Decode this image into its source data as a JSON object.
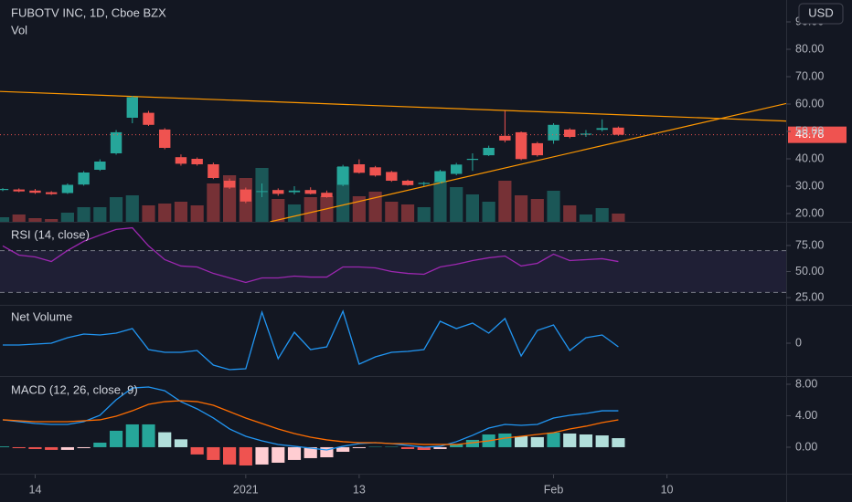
{
  "chart_data": [
    {
      "type": "candlestick",
      "title": "FUBOTV INC, 1D, Cboe BZX",
      "currency": "USD",
      "xlim": [
        -0.17,
        48.36
      ],
      "xticks": [
        {
          "value": 2,
          "label": "14"
        },
        {
          "value": 15,
          "label": "2021"
        },
        {
          "value": 22,
          "label": "13"
        },
        {
          "value": 34,
          "label": "Feb"
        },
        {
          "value": 41,
          "label": "10"
        }
      ],
      "ylim": [
        17.0,
        98.0
      ],
      "yticks": [
        {
          "value": 20,
          "label": "20.00"
        },
        {
          "value": 30,
          "label": "30.00"
        },
        {
          "value": 40,
          "label": "40.00"
        },
        {
          "value": 50,
          "label": "50.00"
        },
        {
          "value": 60,
          "label": "60.00"
        },
        {
          "value": 70,
          "label": "70.00"
        },
        {
          "value": 80,
          "label": "80.00"
        },
        {
          "value": 90,
          "label": "90.00"
        }
      ],
      "up_color": "#26a69a",
      "down_color": "#ef5350",
      "open": [
        28.6,
        28.8,
        28.4,
        27.8,
        27.5,
        30.6,
        36.0,
        42.0,
        55.0,
        56.8,
        50.7,
        40.6,
        40.0,
        38.0,
        32.0,
        28.8,
        28.0,
        28.6,
        27.8,
        28.6,
        27.6,
        30.5,
        38.0,
        36.9,
        35.2,
        32.0,
        30.8,
        31.5,
        34.5,
        39.6,
        41.3,
        48.4,
        49.7,
        45.7,
        46.7,
        50.7,
        48.8,
        50.6,
        51.4
      ],
      "high": [
        29.3,
        29.2,
        29.0,
        28.2,
        31.0,
        35.5,
        39.8,
        50.5,
        63.0,
        57.5,
        51.2,
        41.6,
        40.5,
        38.6,
        32.8,
        29.5,
        31.0,
        29.2,
        30.0,
        29.6,
        28.4,
        37.8,
        39.8,
        37.4,
        35.6,
        32.4,
        31.6,
        36.0,
        38.5,
        42.0,
        44.8,
        57.5,
        50.0,
        46.2,
        53.0,
        51.2,
        50.5,
        54.4,
        51.8
      ],
      "low": [
        28.2,
        27.8,
        27.2,
        26.8,
        27.2,
        30.2,
        35.6,
        41.5,
        53.0,
        52.0,
        43.5,
        37.5,
        37.5,
        32.6,
        29.0,
        23.8,
        26.0,
        26.5,
        27.0,
        27.0,
        25.8,
        30.0,
        34.6,
        33.5,
        31.6,
        30.2,
        30.0,
        31.0,
        34.0,
        35.6,
        41.0,
        46.0,
        39.5,
        40.8,
        45.5,
        47.5,
        48.0,
        50.0,
        48.4
      ],
      "close": [
        29.0,
        28.1,
        27.6,
        27.1,
        30.5,
        35.0,
        39.0,
        49.7,
        62.5,
        52.4,
        44.0,
        38.2,
        38.0,
        33.0,
        29.5,
        24.4,
        28.2,
        27.2,
        28.4,
        27.2,
        26.0,
        37.2,
        34.9,
        33.9,
        32.0,
        30.4,
        31.2,
        35.5,
        37.9,
        40.0,
        44.0,
        46.7,
        39.9,
        41.3,
        52.4,
        48.0,
        49.2,
        51.2,
        48.78
      ],
      "volume": {
        "name": "Vol",
        "values": [
          5,
          8,
          4,
          3,
          10,
          16,
          16,
          27,
          29,
          18,
          20,
          22,
          18,
          42,
          51,
          48,
          59,
          25,
          19,
          27,
          28,
          60,
          28,
          33,
          22,
          19,
          16,
          44,
          38,
          30,
          22,
          45,
          29,
          25,
          34,
          18,
          8,
          15,
          9
        ]
      },
      "trendline_color": "#ff9800",
      "trendlines": [
        {
          "x": [
            -0.17,
            48.36
          ],
          "y": [
            64.6,
            53.8
          ]
        },
        {
          "x": [
            16.5,
            48.36
          ],
          "y": [
            17.0,
            60.2
          ]
        }
      ]
    },
    {
      "type": "line",
      "title": "RSI (14, close)",
      "color": "#9c27b0",
      "ylim": [
        18.9,
        96.0
      ],
      "yticks": [
        {
          "value": 25,
          "label": "25.00"
        },
        {
          "value": 50,
          "label": "50.00"
        },
        {
          "value": 75,
          "label": "75.00"
        }
      ],
      "band": [
        30,
        70
      ],
      "values": [
        74.6,
        65.8,
        64.0,
        59.6,
        70.2,
        79.0,
        85.0,
        90.4,
        92.0,
        74.6,
        61.4,
        55.3,
        54.4,
        48.2,
        43.9,
        39.5,
        43.9,
        43.9,
        45.6,
        44.7,
        44.7,
        54.4,
        54.4,
        53.5,
        50.0,
        48.2,
        47.4,
        54.4,
        57.0,
        60.5,
        63.2,
        64.9,
        55.3,
        57.9,
        66.7,
        60.5,
        61.4,
        62.3,
        59.6
      ]
    },
    {
      "type": "line",
      "title": "Net Volume",
      "color": "#2196f3",
      "ylim": [
        -34,
        39
      ],
      "yticks": [
        0
      ],
      "values": [
        -2,
        -2,
        -1,
        0,
        6,
        10,
        9,
        11,
        16,
        -7,
        -10,
        -10,
        -8,
        -24,
        -29,
        -28,
        34,
        -17,
        12,
        -7,
        -4,
        35,
        -23,
        -15,
        -10,
        -9,
        -7,
        24,
        16,
        22,
        11,
        27,
        -14,
        14,
        20,
        -8,
        6,
        9,
        -4
      ]
    },
    {
      "type": "macd",
      "title": "MACD (12, 26, close, 9)",
      "ylim": [
        -3.25,
        8.81
      ],
      "yticks": [
        {
          "value": 0,
          "label": "0.00"
        },
        {
          "value": 4,
          "label": "4.00"
        },
        {
          "value": 8,
          "label": "8.00"
        }
      ],
      "macd": {
        "color": "#2196f3",
        "values": [
          3.48,
          3.24,
          3.01,
          2.9,
          2.9,
          3.24,
          4.06,
          6.03,
          7.53,
          7.65,
          7.18,
          5.79,
          4.87,
          3.71,
          2.32,
          1.39,
          0.81,
          0.35,
          0.12,
          -0.12,
          -0.35,
          0.12,
          0.46,
          0.58,
          0.46,
          0.23,
          0,
          0.12,
          0.7,
          1.51,
          2.43,
          2.9,
          2.78,
          2.9,
          3.71,
          4.06,
          4.29,
          4.63,
          4.63
        ]
      },
      "signal": {
        "color": "#ff6d00",
        "values": [
          3.48,
          3.36,
          3.24,
          3.24,
          3.24,
          3.36,
          3.48,
          3.94,
          4.63,
          5.45,
          5.79,
          5.91,
          5.79,
          5.33,
          4.52,
          3.71,
          3.01,
          2.32,
          1.74,
          1.27,
          0.93,
          0.7,
          0.58,
          0.58,
          0.46,
          0.46,
          0.35,
          0.35,
          0.35,
          0.58,
          0.81,
          1.16,
          1.39,
          1.62,
          1.85,
          2.32,
          2.67,
          3.13,
          3.48
        ]
      },
      "histogram": {
        "colors": [
          "#26a69a",
          "#b2dfdb",
          "#ffcdd2",
          "#ef5350"
        ],
        "values": [
          0.1,
          -0.12,
          -0.23,
          -0.34,
          -0.34,
          -0.12,
          0.58,
          2.09,
          2.9,
          2.9,
          1.9,
          1.0,
          -0.92,
          -1.62,
          -2.2,
          -2.32,
          -2.2,
          -1.97,
          -1.62,
          -1.39,
          -1.28,
          -0.58,
          -0.12,
          0.05,
          0.05,
          -0.23,
          -0.35,
          -0.23,
          0.35,
          0.93,
          1.62,
          1.74,
          1.39,
          1.28,
          1.86,
          1.74,
          1.62,
          1.5,
          1.15
        ]
      }
    }
  ]
}
